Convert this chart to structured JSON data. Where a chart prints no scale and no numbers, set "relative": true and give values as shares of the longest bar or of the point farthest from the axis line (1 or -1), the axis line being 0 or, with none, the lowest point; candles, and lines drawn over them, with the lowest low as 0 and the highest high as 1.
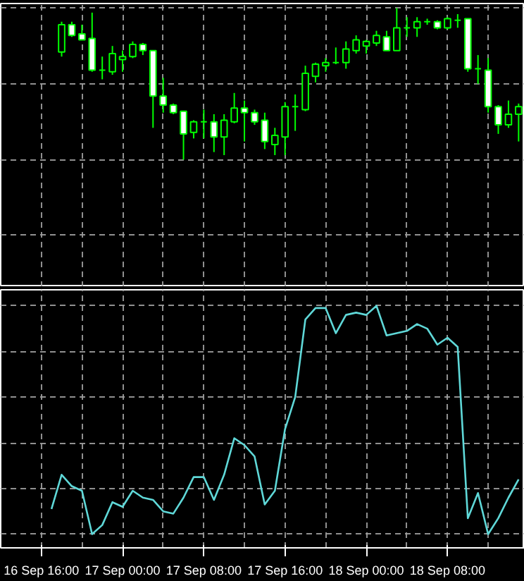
{
  "chart_data": [
    {
      "type": "candlestick",
      "relative": true,
      "color": "#00ff00",
      "grid": true,
      "tick_labels": false,
      "categories": [
        null,
        null,
        null,
        null,
        null,
        null,
        null,
        null,
        null,
        null,
        null,
        null,
        null,
        null,
        null,
        null,
        null,
        null,
        null,
        null,
        null,
        null,
        null,
        null,
        null,
        null,
        null,
        null,
        null,
        null,
        null,
        null,
        null,
        null,
        null,
        null,
        null,
        null,
        null,
        null,
        null,
        null,
        null,
        null,
        null,
        null,
        null,
        null
      ],
      "ohlc": [
        null,
        null,
        [
          0.71,
          0.91,
          0.68,
          0.89
        ],
        [
          0.89,
          0.91,
          0.81,
          0.82
        ],
        [
          0.83,
          0.89,
          0.79,
          0.79
        ],
        [
          0.8,
          0.97,
          0.58,
          0.59
        ],
        [
          0.59,
          0.68,
          0.53,
          0.59
        ],
        [
          0.58,
          0.75,
          0.56,
          0.7
        ],
        [
          0.66,
          0.72,
          0.58,
          0.68
        ],
        [
          0.68,
          0.78,
          0.67,
          0.76
        ],
        [
          0.76,
          0.77,
          0.69,
          0.72
        ],
        [
          0.72,
          0.72,
          0.21,
          0.42
        ],
        [
          0.42,
          0.54,
          0.31,
          0.36
        ],
        [
          0.36,
          0.37,
          0.3,
          0.31
        ],
        [
          0.32,
          0.32,
          0,
          0.17
        ],
        [
          0.18,
          0.26,
          0.14,
          0.25
        ],
        [
          0.25,
          0.33,
          0.14,
          0.25
        ],
        [
          0.25,
          0.3,
          0.05,
          0.15
        ],
        [
          0.15,
          0.3,
          0.03,
          0.26
        ],
        [
          0.25,
          0.44,
          0.24,
          0.34
        ],
        [
          0.34,
          0.39,
          0.12,
          0.31
        ],
        [
          0.31,
          0.33,
          0.23,
          0.25
        ],
        [
          0.26,
          0.31,
          0.07,
          0.12
        ],
        [
          0.1,
          0.21,
          0.03,
          0.16
        ],
        [
          0.15,
          0.38,
          0.03,
          0.35
        ],
        [
          0.35,
          0.43,
          0.19,
          0.35
        ],
        [
          0.33,
          0.62,
          0.32,
          0.57
        ],
        [
          0.55,
          0.64,
          0.51,
          0.63
        ],
        [
          0.62,
          0.67,
          0.58,
          0.64
        ],
        [
          0.64,
          0.74,
          0.63,
          0.64
        ],
        [
          0.64,
          0.78,
          0.6,
          0.73
        ],
        [
          0.72,
          0.82,
          0.7,
          0.79
        ],
        [
          0.75,
          0.79,
          0.7,
          0.78
        ],
        [
          0.77,
          0.85,
          0.75,
          0.82
        ],
        [
          0.81,
          0.85,
          0.72,
          0.72
        ],
        [
          0.72,
          1,
          0.72,
          0.87
        ],
        [
          0.87,
          0.94,
          0.81,
          0.87
        ],
        [
          0.87,
          0.94,
          0.81,
          0.91
        ],
        [
          0.91,
          0.93,
          0.89,
          0.91
        ],
        [
          0.91,
          0.92,
          0.86,
          0.87
        ],
        [
          0.87,
          0.94,
          0.86,
          0.93
        ],
        [
          0.92,
          0.96,
          0.87,
          0.92
        ],
        [
          0.93,
          0.93,
          0.58,
          0.6
        ],
        [
          0.6,
          0.69,
          0.5,
          0.6
        ],
        [
          0.59,
          0.67,
          0.31,
          0.35
        ],
        [
          0.35,
          0.36,
          0.17,
          0.23
        ],
        [
          0.23,
          0.39,
          0.21,
          0.3
        ],
        [
          0.3,
          0.37,
          0.12,
          0.35
        ]
      ]
    },
    {
      "type": "line",
      "relative": true,
      "color": "#5fd8d8",
      "grid": true,
      "tick_labels": "x",
      "categories": [
        "16 Sep 16:00",
        null,
        null,
        null,
        null,
        null,
        null,
        null,
        "17 Sep 00:00",
        null,
        null,
        null,
        null,
        null,
        null,
        null,
        "17 Sep 08:00",
        null,
        null,
        null,
        null,
        null,
        null,
        null,
        "17 Sep 16:00",
        null,
        null,
        null,
        null,
        null,
        null,
        null,
        "18 Sep 00:00",
        null,
        null,
        null,
        null,
        null,
        null,
        null,
        "18 Sep 08:00",
        null,
        null,
        null,
        null,
        null,
        null,
        null
      ],
      "values": [
        null,
        0.11,
        0.26,
        0.21,
        0.19,
        0.0,
        0.04,
        0.14,
        0.12,
        0.19,
        0.16,
        0.15,
        0.1,
        0.09,
        0.16,
        0.25,
        0.25,
        0.15,
        0.26,
        0.42,
        0.39,
        0.34,
        0.13,
        0.19,
        0.46,
        0.6,
        0.94,
        0.99,
        0.99,
        0.88,
        0.96,
        0.97,
        0.96,
        1,
        0.87,
        0.88,
        0.89,
        0.92,
        0.9,
        0.83,
        0.86,
        0.82,
        0.07,
        0.18,
        0,
        0.07,
        0.16,
        0.24
      ]
    }
  ]
}
